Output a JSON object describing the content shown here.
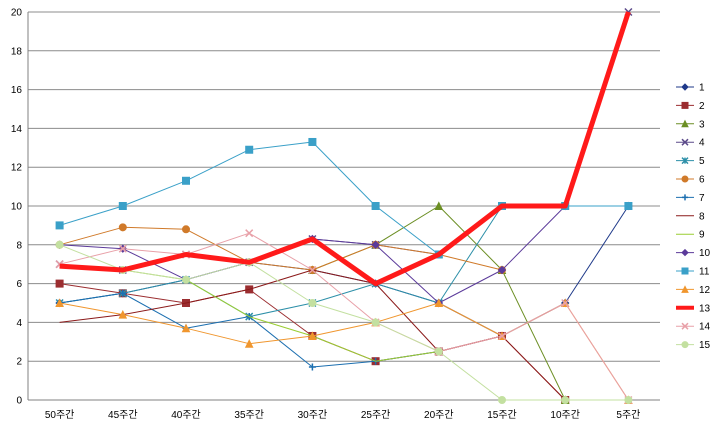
{
  "chart_data": {
    "type": "line",
    "title": "",
    "xlabel": "",
    "ylabel": "",
    "categories": [
      "50주간",
      "45주간",
      "40주간",
      "35주간",
      "30주간",
      "25주간",
      "20주간",
      "15주간",
      "10주간",
      "5주간"
    ],
    "ylim": [
      0,
      20
    ],
    "yticks": [
      0,
      2,
      4,
      6,
      8,
      10,
      12,
      14,
      16,
      18,
      20
    ],
    "grid": "horizontal",
    "legend_position": "right",
    "series": [
      {
        "name": "1",
        "color": "#1f3a8a",
        "marker": "diamond",
        "width": 1,
        "values": [
          5,
          5.5,
          6.2,
          7.1,
          6.7,
          6,
          5,
          3.3,
          5,
          10
        ]
      },
      {
        "name": "2",
        "color": "#9b2d30",
        "marker": "square",
        "width": 1,
        "values": [
          6,
          5.5,
          5,
          5.7,
          3.3,
          2,
          2.5,
          3.3,
          0,
          null
        ]
      },
      {
        "name": "3",
        "color": "#6b8e23",
        "marker": "triangle",
        "width": 1,
        "values": [
          null,
          null,
          null,
          null,
          6.7,
          8,
          10,
          6.7,
          0,
          null
        ]
      },
      {
        "name": "4",
        "color": "#5b4a8a",
        "marker": "x",
        "width": 1,
        "values": [
          7,
          6.7,
          7.5,
          7.1,
          8.3,
          8,
          7.5,
          10,
          10,
          20
        ]
      },
      {
        "name": "5",
        "color": "#2c8fa8",
        "marker": "star",
        "width": 1,
        "values": [
          5,
          5.5,
          6.2,
          4.3,
          5,
          6,
          5,
          10,
          10,
          10
        ]
      },
      {
        "name": "6",
        "color": "#d07a2a",
        "marker": "circle",
        "width": 1,
        "values": [
          8,
          8.9,
          8.8,
          7.1,
          6.7,
          8,
          7.5,
          6.7,
          null,
          null
        ]
      },
      {
        "name": "7",
        "color": "#1c6fb0",
        "marker": "plus",
        "width": 1,
        "values": [
          5,
          5.5,
          3.7,
          4.3,
          1.7,
          2,
          2.5,
          null,
          null,
          null
        ]
      },
      {
        "name": "8",
        "color": "#8b1a1a",
        "marker": "none",
        "width": 1,
        "values": [
          4,
          4.4,
          5,
          5.7,
          6.7,
          6,
          2.5,
          3.3,
          0,
          null
        ]
      },
      {
        "name": "9",
        "color": "#9acd32",
        "marker": "none",
        "width": 1,
        "values": [
          7,
          6.7,
          6.2,
          4.3,
          3.3,
          2,
          2.5,
          null,
          null,
          null
        ]
      },
      {
        "name": "10",
        "color": "#5b3a9a",
        "marker": "diamond",
        "width": 1,
        "values": [
          8,
          7.8,
          6.2,
          7.1,
          8.3,
          8,
          5,
          6.7,
          10,
          null
        ]
      },
      {
        "name": "11",
        "color": "#3aa0c8",
        "marker": "square",
        "width": 1,
        "values": [
          9,
          10,
          11.3,
          12.9,
          13.3,
          10,
          7.5,
          10,
          10,
          10
        ]
      },
      {
        "name": "12",
        "color": "#f0962e",
        "marker": "triangle",
        "width": 1,
        "values": [
          5,
          4.4,
          3.7,
          2.9,
          3.3,
          4,
          5,
          3.3,
          5,
          0
        ]
      },
      {
        "name": "13",
        "color": "#ff1a1a",
        "marker": "none",
        "width": 5,
        "values": [
          6.9,
          6.7,
          7.5,
          7.1,
          8.3,
          6,
          7.5,
          10,
          10,
          20
        ]
      },
      {
        "name": "14",
        "color": "#e8a0a8",
        "marker": "x",
        "width": 1,
        "values": [
          7,
          7.8,
          7.5,
          8.6,
          6.7,
          4,
          2.5,
          3.3,
          5,
          0
        ]
      },
      {
        "name": "15",
        "color": "#c3e0a0",
        "marker": "circle",
        "width": 1,
        "values": [
          8,
          6.7,
          6.2,
          7.1,
          5,
          4,
          2.5,
          0,
          0,
          0
        ]
      }
    ]
  }
}
